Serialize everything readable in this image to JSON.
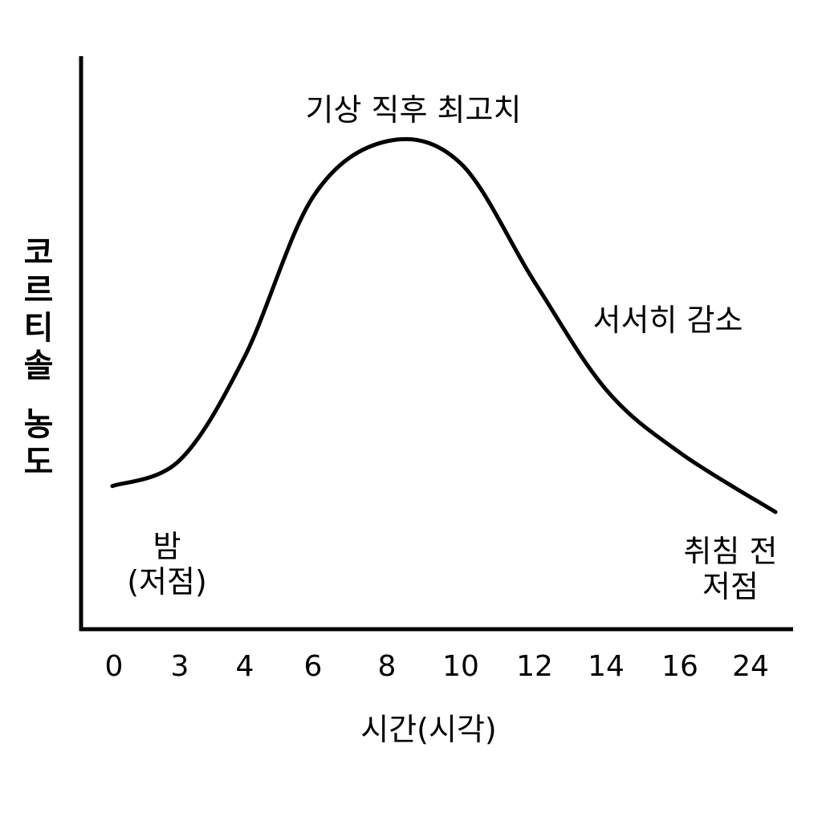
{
  "chart_data": {
    "type": "line",
    "title": "",
    "xlabel": "시간(시각)",
    "ylabel": "코르티솔 농도",
    "x_ticks": [
      "0",
      "3",
      "4",
      "6",
      "8",
      "10",
      "12",
      "14",
      "16",
      "24"
    ],
    "series": [
      {
        "name": "",
        "values": [
          0.07,
          0.14,
          0.42,
          0.85,
          1.0,
          0.94,
          0.62,
          0.33,
          0.16,
          0.0
        ]
      }
    ],
    "grid": false,
    "annotations": [
      {
        "id": "peak",
        "lines": [
          "기상 직후 최고치"
        ]
      },
      {
        "id": "decline",
        "lines": [
          "서서히 감소"
        ]
      },
      {
        "id": "night-low",
        "lines": [
          "밤",
          "(저점)"
        ]
      },
      {
        "id": "bedtime-low",
        "lines": [
          "취침 전",
          "저점"
        ]
      }
    ],
    "line_color": "#000000"
  }
}
